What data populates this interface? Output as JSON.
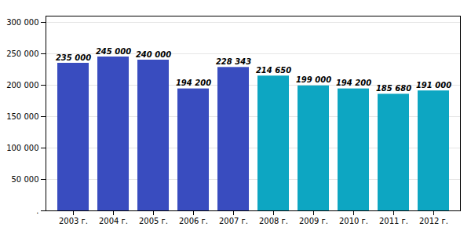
{
  "chart_data": {
    "type": "bar",
    "categories": [
      "2003 г.",
      "2004 г.",
      "2005 г.",
      "2006 г.",
      "2007 г.",
      "2008 г.",
      "2009 г.",
      "2010 г.",
      "2011 г.",
      "2012 г."
    ],
    "values": [
      235000,
      245000,
      240000,
      194200,
      228343,
      214650,
      199000,
      194200,
      185680,
      191000
    ],
    "value_labels": [
      "235 000",
      "245 000",
      "240 000",
      "194 200",
      "228 343",
      "214 650",
      "199 000",
      "194 200",
      "185 680",
      "191 000"
    ],
    "colors": [
      "#394CBF",
      "#394CBF",
      "#394CBF",
      "#394CBF",
      "#394CBF",
      "#0DA6C2",
      "#0DA6C2",
      "#0DA6C2",
      "#0DA6C2",
      "#0DA6C2"
    ],
    "ylim": [
      0,
      310000
    ],
    "yticks": [
      {
        "value": 0,
        "label": "."
      },
      {
        "value": 50000,
        "label": "50 000"
      },
      {
        "value": 100000,
        "label": "100 000"
      },
      {
        "value": 150000,
        "label": "150 000"
      },
      {
        "value": 200000,
        "label": "200 000"
      },
      {
        "value": 250000,
        "label": "250 000"
      },
      {
        "value": 300000,
        "label": "300 000"
      }
    ],
    "grid": true,
    "data_labels": true
  }
}
